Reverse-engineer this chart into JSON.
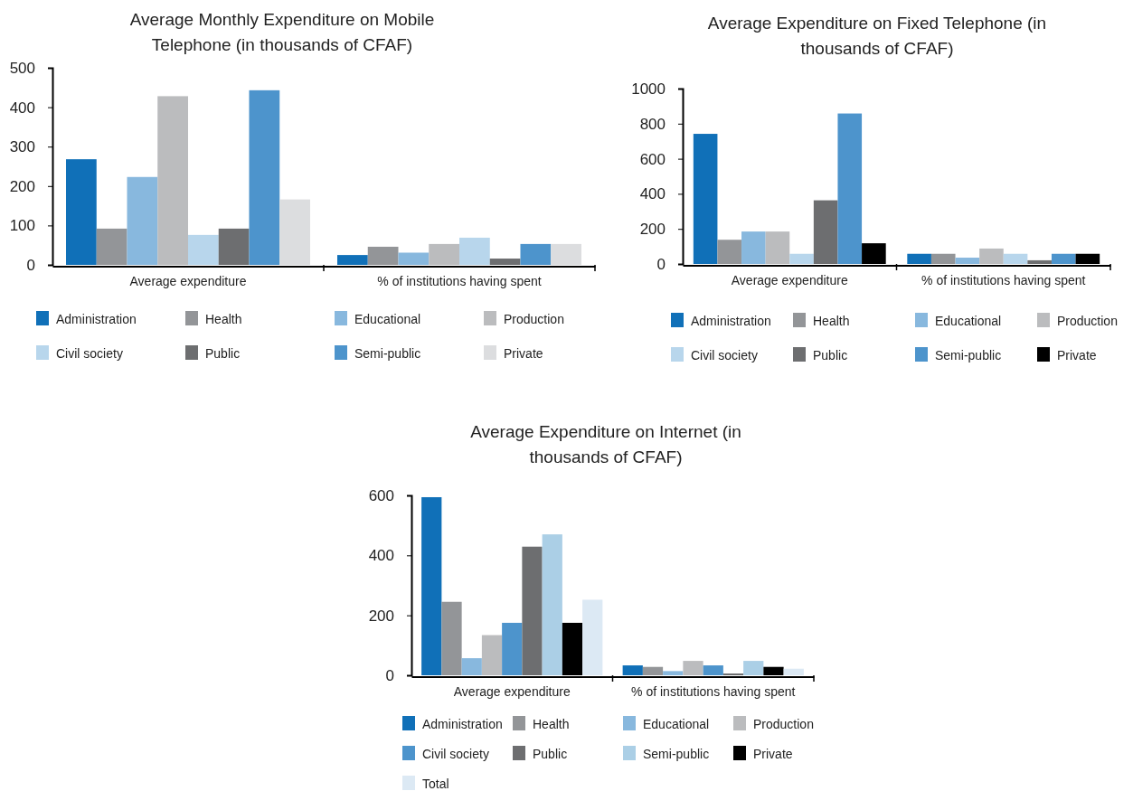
{
  "chart_data": [
    {
      "type": "bar",
      "title": "Average Monthly Expenditure on Mobile Telephone (in thousands of CFAF)",
      "categories": [
        "Average expenditure",
        "% of institutions having spent"
      ],
      "ylim": [
        0,
        500
      ],
      "yticks": [
        0,
        100,
        200,
        300,
        400,
        500
      ],
      "legend": "bottom",
      "grid": false,
      "series": [
        {
          "name": "Administration",
          "color": "#1070b8",
          "values": [
            268,
            25
          ]
        },
        {
          "name": "Health",
          "color": "#939598",
          "values": [
            92,
            46
          ]
        },
        {
          "name": "Educational",
          "color": "#88b8de",
          "values": [
            223,
            31
          ]
        },
        {
          "name": "Production",
          "color": "#bbbcbe",
          "values": [
            428,
            53
          ]
        },
        {
          "name": "Civil society",
          "color": "#b8d6ec",
          "values": [
            76,
            69
          ]
        },
        {
          "name": "Public",
          "color": "#6d6e70",
          "values": [
            92,
            16
          ]
        },
        {
          "name": "Semi-public",
          "color": "#4d94cc",
          "values": [
            443,
            53
          ]
        },
        {
          "name": "Private",
          "color": "#dcdddf",
          "values": [
            166,
            53
          ]
        }
      ]
    },
    {
      "type": "bar",
      "title": "Average Expenditure on Fixed Telephone (in thousands of CFAF)",
      "categories": [
        "Average expenditure",
        "% of institutions having spent"
      ],
      "ylim": [
        0,
        1000
      ],
      "yticks": [
        0,
        200,
        400,
        600,
        800,
        1000
      ],
      "legend": "bottom",
      "grid": false,
      "series": [
        {
          "name": "Administration",
          "color": "#1070b8",
          "values": [
            742,
            58
          ]
        },
        {
          "name": "Health",
          "color": "#939598",
          "values": [
            138,
            58
          ]
        },
        {
          "name": "Educational",
          "color": "#88b8de",
          "values": [
            185,
            36
          ]
        },
        {
          "name": "Production",
          "color": "#bbbcbe",
          "values": [
            185,
            88
          ]
        },
        {
          "name": "Civil society",
          "color": "#b8d6ec",
          "values": [
            58,
            58
          ]
        },
        {
          "name": "Public",
          "color": "#6d6e70",
          "values": [
            363,
            21
          ]
        },
        {
          "name": "Semi-public",
          "color": "#4d94cc",
          "values": [
            858,
            58
          ]
        },
        {
          "name": "Private",
          "color": "#000000",
          "values": [
            118,
            58
          ]
        }
      ]
    },
    {
      "type": "bar",
      "title": "Average Expenditure on Internet (in thousands of CFAF)",
      "categories": [
        "Average expenditure",
        "% of institutions having spent"
      ],
      "ylim": [
        0,
        600
      ],
      "yticks": [
        0,
        200,
        400,
        600
      ],
      "legend": "bottom",
      "grid": false,
      "series": [
        {
          "name": "Administration",
          "color": "#1070b8",
          "values": [
            594,
            33
          ]
        },
        {
          "name": "Health",
          "color": "#939598",
          "values": [
            245,
            28
          ]
        },
        {
          "name": "Educational",
          "color": "#88b8de",
          "values": [
            57,
            14
          ]
        },
        {
          "name": "Production",
          "color": "#bbbcbe",
          "values": [
            134,
            48
          ]
        },
        {
          "name": "Civil society",
          "color": "#4d94cc",
          "values": [
            175,
            33
          ]
        },
        {
          "name": "Public",
          "color": "#6d6e70",
          "values": [
            429,
            6
          ]
        },
        {
          "name": "Semi-public",
          "color": "#abcfe6",
          "values": [
            470,
            48
          ]
        },
        {
          "name": "Private",
          "color": "#000000",
          "values": [
            175,
            28
          ]
        },
        {
          "name": "Total",
          "color": "#dce9f4",
          "values": [
            252,
            22
          ]
        }
      ]
    }
  ]
}
